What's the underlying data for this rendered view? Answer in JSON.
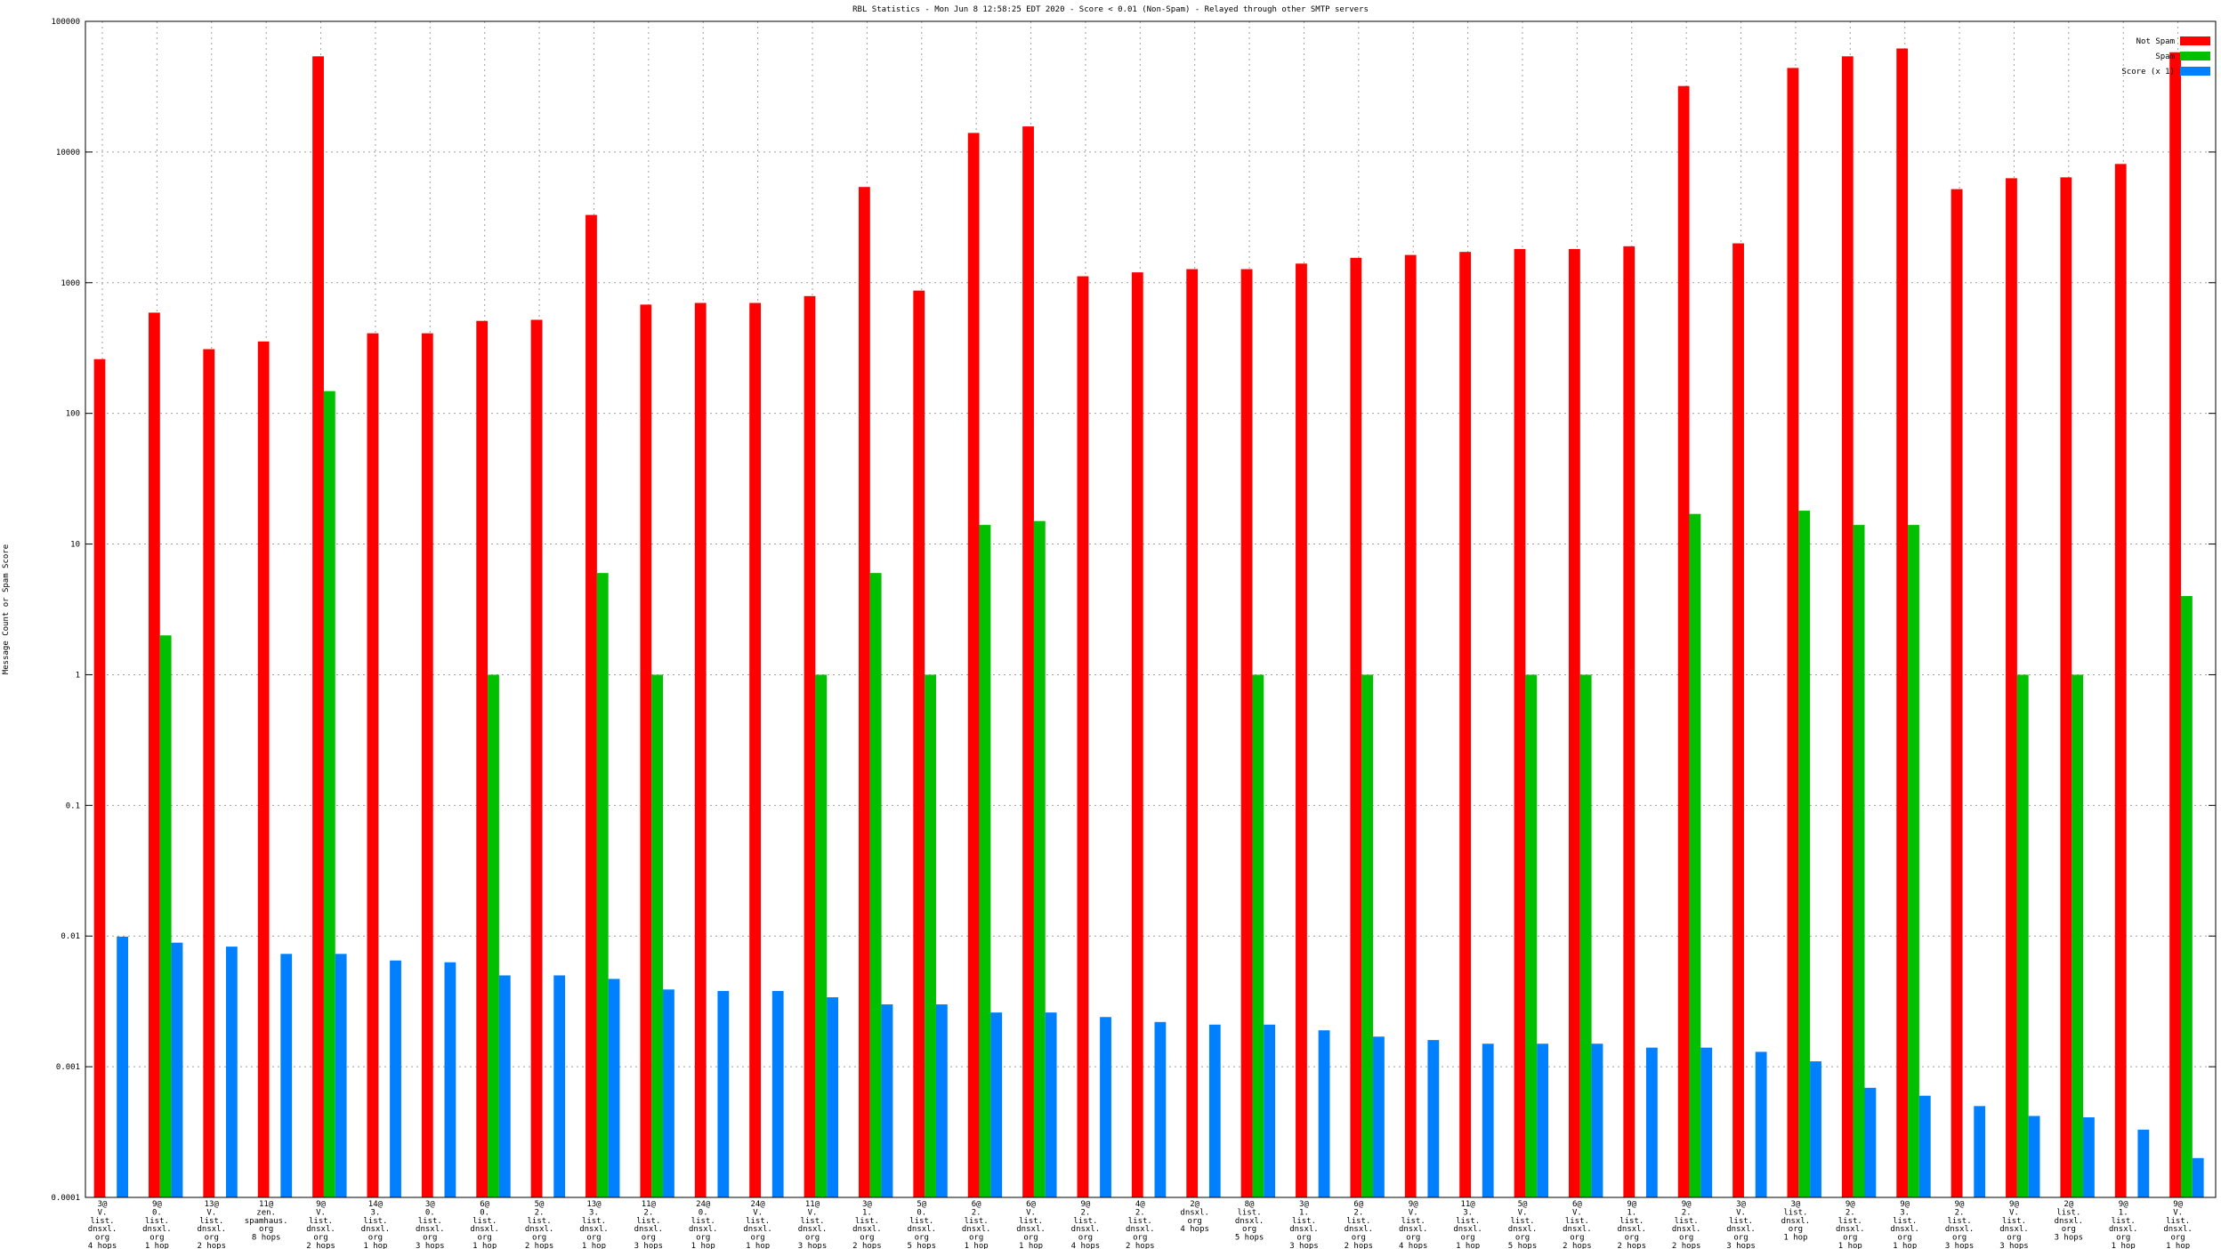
{
  "chart_data": {
    "type": "bar",
    "title": "RBL Statistics - Mon Jun  8 12:58:25 EDT 2020 - Score < 0.01 (Non-Spam) - Relayed through other SMTP servers",
    "y_label": "Message Count or Spam Score",
    "log_scale": true,
    "grid": true,
    "legend": "top-right",
    "ylim": [
      0.0001,
      100000
    ],
    "yticks": [
      0.0001,
      0.001,
      0.01,
      0.1,
      1,
      10,
      100,
      1000,
      10000,
      100000
    ],
    "categories": [
      "3@\nV.\nlist.\ndnsxl.\norg\n4 hops",
      "9@\n0.\nlist.\ndnsxl.\norg\n1 hop",
      "13@\nV.\nlist.\ndnsxl.\norg\n2 hops",
      "11@\nzen.\nspamhaus.\norg\n8 hops",
      "9@\nV.\nlist.\ndnsxl.\norg\n2 hops",
      "14@\n3.\nlist.\ndnsxl.\norg\n1 hop",
      "3@\n0.\nlist.\ndnsxl.\norg\n3 hops",
      "6@\n0.\nlist.\ndnsxl.\norg\n1 hop",
      "5@\n2.\nlist.\ndnsxl.\norg\n2 hops",
      "13@\n3.\nlist.\ndnsxl.\norg\n1 hop",
      "11@\n2.\nlist.\ndnsxl.\norg\n3 hops",
      "24@\n0.\nlist.\ndnsxl.\norg\n1 hop",
      "24@\nV.\nlist.\ndnsxl.\norg\n1 hop",
      "11@\nV.\nlist.\ndnsxl.\norg\n3 hops",
      "3@\n1.\nlist.\ndnsxl.\norg\n2 hops",
      "5@\n0.\nlist.\ndnsxl.\norg\n5 hops",
      "6@\n2.\nlist.\ndnsxl.\norg\n1 hop",
      "6@\nV.\nlist.\ndnsxl.\norg\n1 hop",
      "9@\n2.\nlist.\ndnsxl.\norg\n4 hops",
      "4@\n2.\nlist.\ndnsxl.\norg\n2 hops",
      "2@\ndnsxl.\norg\n4 hops",
      "8@\nlist.\ndnsxl.\norg\n5 hops",
      "3@\n1.\nlist.\ndnsxl.\norg\n3 hops",
      "6@\n2.\nlist.\ndnsxl.\norg\n2 hops",
      "9@\nV.\nlist.\ndnsxl.\norg\n4 hops",
      "11@\n3.\nlist.\ndnsxl.\norg\n1 hop",
      "5@\nV.\nlist.\ndnsxl.\norg\n5 hops",
      "6@\nV.\nlist.\ndnsxl.\norg\n2 hops",
      "9@\n1.\nlist.\ndnsxl.\norg\n2 hops",
      "9@\n2.\nlist.\ndnsxl.\norg\n2 hops",
      "3@\nV.\nlist.\ndnsxl.\norg\n3 hops",
      "3@\nlist.\ndnsxl.\norg\n1 hop",
      "9@\n2.\nlist.\ndnsxl.\norg\n1 hop",
      "9@\n3.\nlist.\ndnsxl.\norg\n1 hop",
      "9@\n2.\nlist.\ndnsxl.\norg\n3 hops",
      "9@\nV.\nlist.\ndnsxl.\norg\n3 hops",
      "2@\nlist.\ndnsxl.\norg\n3 hops",
      "9@\n1.\nlist.\ndnsxl.\norg\n1 hop",
      "9@\nV.\nlist.\ndnsxl.\norg\n1 hop"
    ],
    "series": [
      {
        "name": "Not Spam",
        "color": "#ff0000",
        "values": [
          260,
          590,
          310,
          355,
          54000,
          410,
          410,
          510,
          520,
          3300,
          680,
          700,
          700,
          790,
          5400,
          870,
          14000,
          15700,
          1120,
          1200,
          1270,
          1270,
          1400,
          1550,
          1630,
          1720,
          1810,
          1810,
          1900,
          32000,
          2000,
          44000,
          54000,
          62000,
          5200,
          6300,
          6400,
          8100,
          58000
        ]
      },
      {
        "name": "Spam",
        "color": "#00c000",
        "values": [
          null,
          2,
          null,
          null,
          148,
          null,
          null,
          1,
          null,
          6,
          1,
          null,
          null,
          1,
          6,
          1,
          14,
          15,
          null,
          null,
          null,
          1,
          null,
          1,
          null,
          null,
          1,
          1,
          null,
          17,
          null,
          18,
          14,
          14,
          null,
          1,
          1,
          null,
          4
        ]
      },
      {
        "name": "Score (x 1)",
        "color": "#0080ff",
        "values": [
          0.0099,
          0.0089,
          0.0083,
          0.0073,
          0.0073,
          0.0065,
          0.0063,
          0.005,
          0.005,
          0.0047,
          0.0039,
          0.0038,
          0.0038,
          0.0034,
          0.003,
          0.003,
          0.0026,
          0.0026,
          0.0024,
          0.0022,
          0.0021,
          0.0021,
          0.0019,
          0.0017,
          0.0016,
          0.0015,
          0.0015,
          0.0015,
          0.0014,
          0.0014,
          0.0013,
          0.0011,
          0.00069,
          0.0006,
          0.0005,
          0.00042,
          0.00041,
          0.00033,
          0.0002
        ]
      }
    ]
  }
}
